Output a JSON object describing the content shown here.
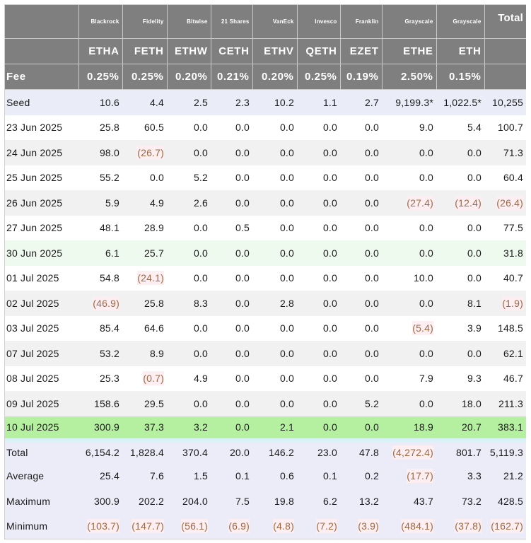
{
  "table": {
    "issuers": [
      "",
      "Blackrock",
      "Fidelity",
      "Bitwise",
      "21 Shares",
      "VanEck",
      "Invesco",
      "Franklin",
      "Grayscale",
      "Grayscale",
      "Total"
    ],
    "tickers": [
      "",
      "ETHA",
      "FETH",
      "ETHW",
      "CETH",
      "ETHV",
      "QETH",
      "EZET",
      "ETHE",
      "ETH",
      ""
    ],
    "fee_label": "Fee",
    "fees": [
      "0.25%",
      "0.25%",
      "0.20%",
      "0.21%",
      "0.20%",
      "0.25%",
      "0.19%",
      "2.50%",
      "0.15%",
      ""
    ],
    "rows": [
      {
        "label": "Seed",
        "style": "seed",
        "values": [
          "10.6",
          "4.4",
          "2.5",
          "2.3",
          "10.2",
          "1.1",
          "2.7",
          "9,199.3*",
          "1,022.5*",
          "10,255"
        ]
      },
      {
        "label": "23 Jun 2025",
        "style": "white",
        "values": [
          "25.8",
          "60.5",
          "0.0",
          "0.0",
          "0.0",
          "0.0",
          "0.0",
          "9.0",
          "5.4",
          "100.7"
        ]
      },
      {
        "label": "24 Jun 2025",
        "style": "grey",
        "values": [
          "98.0",
          "(26.7)",
          "0.0",
          "0.0",
          "0.0",
          "0.0",
          "0.0",
          "0.0",
          "0.0",
          "71.3"
        ]
      },
      {
        "label": "25 Jun 2025",
        "style": "white",
        "values": [
          "55.2",
          "0.0",
          "5.2",
          "0.0",
          "0.0",
          "0.0",
          "0.0",
          "0.0",
          "0.0",
          "60.4"
        ]
      },
      {
        "label": "26 Jun 2025",
        "style": "grey",
        "values": [
          "5.9",
          "4.9",
          "2.6",
          "0.0",
          "0.0",
          "0.0",
          "0.0",
          "(27.4)",
          "(12.4)",
          "(26.4)"
        ]
      },
      {
        "label": "27 Jun 2025",
        "style": "white",
        "values": [
          "48.1",
          "28.9",
          "0.0",
          "0.5",
          "0.0",
          "0.0",
          "0.0",
          "0.0",
          "0.0",
          "77.5"
        ]
      },
      {
        "label": "30 Jun 2025",
        "style": "lightgreen",
        "values": [
          "6.1",
          "25.7",
          "0.0",
          "0.0",
          "0.0",
          "0.0",
          "0.0",
          "0.0",
          "0.0",
          "31.8"
        ]
      },
      {
        "label": "01 Jul 2025",
        "style": "white",
        "values": [
          "54.8",
          "(24.1)",
          "0.0",
          "0.0",
          "0.0",
          "0.0",
          "0.0",
          "10.0",
          "0.0",
          "40.7"
        ]
      },
      {
        "label": "02 Jul 2025",
        "style": "grey",
        "values": [
          "(46.9)",
          "25.8",
          "8.3",
          "0.0",
          "2.8",
          "0.0",
          "0.0",
          "0.0",
          "8.1",
          "(1.9)"
        ]
      },
      {
        "label": "03 Jul 2025",
        "style": "white",
        "values": [
          "85.4",
          "64.6",
          "0.0",
          "0.0",
          "0.0",
          "0.0",
          "0.0",
          "(5.4)",
          "3.9",
          "148.5"
        ]
      },
      {
        "label": "07 Jul 2025",
        "style": "grey",
        "values": [
          "53.2",
          "8.9",
          "0.0",
          "0.0",
          "0.0",
          "0.0",
          "0.0",
          "0.0",
          "0.0",
          "62.1"
        ]
      },
      {
        "label": "08 Jul 2025",
        "style": "white",
        "values": [
          "25.3",
          "(0.7)",
          "4.9",
          "0.0",
          "0.0",
          "0.0",
          "0.0",
          "7.9",
          "9.3",
          "46.7"
        ]
      },
      {
        "label": "09 Jul 2025",
        "style": "grey",
        "values": [
          "158.6",
          "29.5",
          "0.0",
          "0.0",
          "0.0",
          "0.0",
          "5.2",
          "0.0",
          "18.0",
          "211.3"
        ]
      },
      {
        "label": "10 Jul 2025",
        "style": "green",
        "values": [
          "300.9",
          "37.3",
          "3.2",
          "0.0",
          "2.1",
          "0.0",
          "0.0",
          "18.9",
          "20.7",
          "383.1"
        ]
      }
    ],
    "summary": [
      {
        "label": "Total",
        "values": [
          "6,154.2",
          "1,828.4",
          "370.4",
          "20.0",
          "146.2",
          "23.0",
          "47.8",
          "(4,272.4)",
          "801.7",
          "5,119.3"
        ]
      },
      {
        "label": "Average",
        "values": [
          "25.4",
          "7.6",
          "1.5",
          "0.1",
          "0.6",
          "0.1",
          "0.2",
          "(17.7)",
          "3.3",
          "21.2"
        ]
      },
      {
        "label": "Maximum",
        "values": [
          "300.9",
          "202.2",
          "204.0",
          "7.5",
          "19.8",
          "6.2",
          "13.2",
          "43.7",
          "73.2",
          "428.5"
        ]
      },
      {
        "label": "Minimum",
        "values": [
          "(103.7)",
          "(147.7)",
          "(56.1)",
          "(6.9)",
          "(4.8)",
          "(7.2)",
          "(3.9)",
          "(484.1)",
          "(37.8)",
          "(162.7)"
        ]
      }
    ]
  },
  "colors": {
    "header_bg": "#7f7f7f",
    "header_text": "#ffffff",
    "negative_text": "#9c6a44",
    "negative_bg": "#fdeef2",
    "seed_bg": "#eaedf7",
    "alt_row_bg": "#f1f1f1",
    "highlight_latest_bg": "#b5f0a0",
    "highlight_soft_bg": "#eefaee",
    "summary_bg": "#ebecf7"
  }
}
